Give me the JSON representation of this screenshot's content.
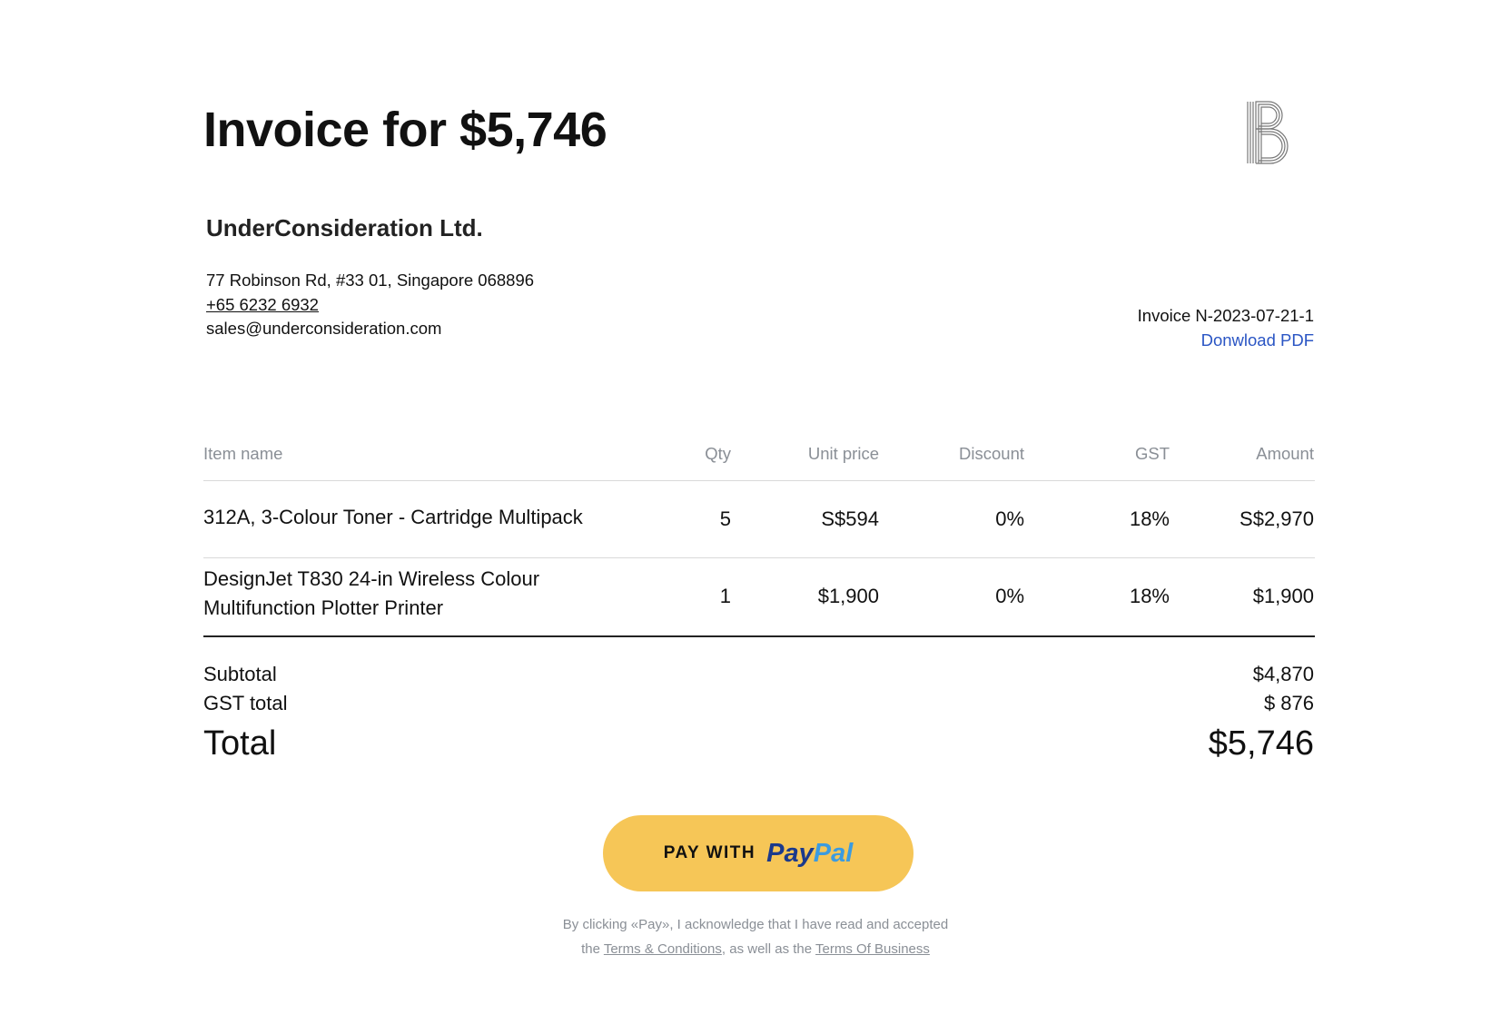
{
  "title": "Invoice for $5,746",
  "company": {
    "name": "UnderConsideration Ltd.",
    "address": "77 Robinson Rd, #33 01, Singapore 068896",
    "phone": "+65 6232 6932",
    "email": "sales@underconsideration.com"
  },
  "invoice": {
    "number": "Invoice N-2023-07-21-1",
    "download_label": "Donwload PDF",
    "link_color": "#2a55c4"
  },
  "table": {
    "headers": [
      "Item name",
      "Qty",
      "Unit price",
      "Discount",
      "GST",
      "Amount"
    ],
    "rows": [
      {
        "name": "312A, 3-Colour Toner - Cartridge Multipack",
        "qty": "5",
        "unit": "S$594",
        "discount": "0%",
        "gst": "18%",
        "amount": "S$2,970"
      },
      {
        "name_line1": "DesignJet T830 24-in Wireless Colour",
        "name_line2": "Multifunction Plotter Printer",
        "qty": "1",
        "unit": "$1,900",
        "discount": "0%",
        "gst": "18%",
        "amount": "$1,900"
      }
    ]
  },
  "summary": {
    "subtotal_label": "Subtotal",
    "subtotal": "$4,870",
    "gst_label": "GST total",
    "gst": "$ 876",
    "total_label": "Total",
    "total": "$5,746"
  },
  "pay": {
    "prefix": "PAY WITH",
    "brand1": "Pay",
    "brand2": "Pal",
    "color": "#f6c657"
  },
  "footer": {
    "line1": "By clicking «Pay», I acknowledge that I have read and accepted",
    "the": "the",
    "terms": "Terms & Conditions",
    "mid": ", as well as the",
    "business": "Terms Of Business"
  },
  "logo_icon": "striped-letter-b-logo"
}
